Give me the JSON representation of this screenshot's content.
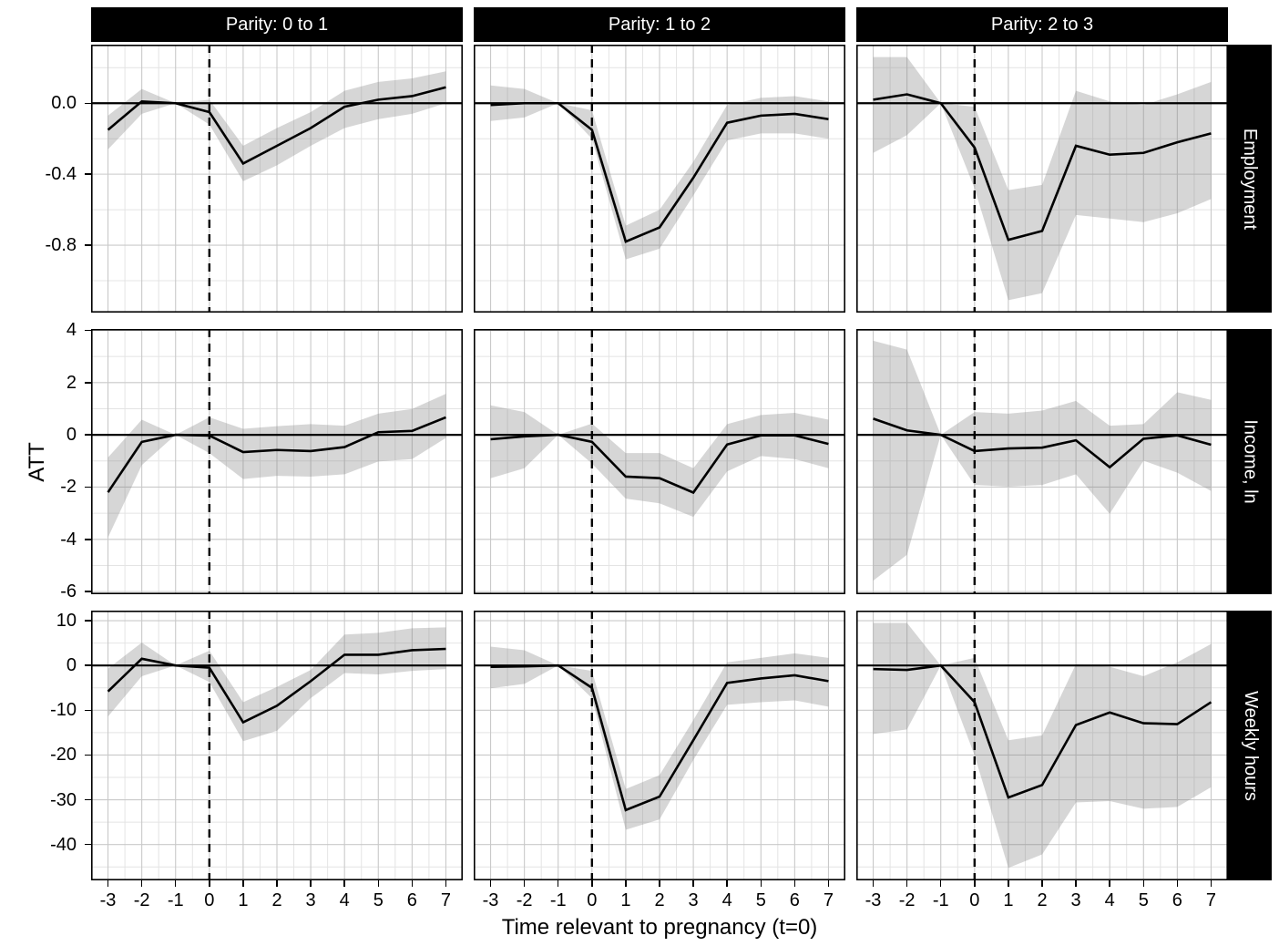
{
  "figure": {
    "x_axis_title": "Time relevant to pregnancy (t=0)",
    "y_axis_title": "ATT",
    "col_labels": [
      "Parity: 0 to 1",
      "Parity: 1 to 2",
      "Parity: 2 to 3"
    ],
    "row_labels": [
      "Employment",
      "Income, ln",
      "Weekly hours"
    ],
    "x_tick_labels": [
      "-3",
      "-2",
      "-1",
      "0",
      "1",
      "2",
      "3",
      "4",
      "5",
      "6",
      "7"
    ],
    "colors": {
      "strip_bg": "#000000",
      "strip_text": "#ffffff",
      "line": "#000000",
      "ribbon": "#7f7f7f",
      "ribbon_opacity": 0.32,
      "grid_major": "#c9c9c9",
      "grid_minor": "#e4e4e4",
      "axis_text": "#000000",
      "zero_line": "#000000",
      "event_line": "#000000",
      "panel_border": "#000000"
    }
  },
  "chart_data": {
    "type": "line",
    "title": "",
    "xlabel": "Time relevant to pregnancy (t=0)",
    "ylabel": "ATT",
    "facets": {
      "columns": [
        "Parity: 0 to 1",
        "Parity: 1 to 2",
        "Parity: 2 to 3"
      ],
      "rows": [
        "Employment",
        "Income, ln",
        "Weekly hours"
      ]
    },
    "x": [
      -3,
      -2,
      -1,
      0,
      1,
      2,
      3,
      4,
      5,
      6,
      7
    ],
    "xlim": [
      -3.5,
      7.5
    ],
    "x_minor": [
      -2.5,
      -1.5,
      -0.5,
      0.5,
      1.5,
      2.5,
      3.5,
      4.5,
      5.5,
      6.5
    ],
    "grid": true,
    "legend": false,
    "reference": {
      "hline_y": 0,
      "vline_x": 0,
      "vline_style": "dashed"
    },
    "rows": [
      {
        "label": "Employment",
        "ylim": [
          -1.18,
          0.33
        ],
        "ticks": [
          0,
          -0.4,
          -0.8
        ],
        "tick_labels": [
          "0.0",
          "-0.4",
          "-0.8"
        ],
        "minor": [
          0.2,
          -0.2,
          -0.6,
          -1.0
        ]
      },
      {
        "label": "Income, ln",
        "ylim": [
          -6.1,
          4.05
        ],
        "ticks": [
          4,
          2,
          0,
          -2,
          -4,
          -6
        ],
        "tick_labels": [
          "4",
          "2",
          "0",
          "-2",
          "-4",
          "-6"
        ],
        "minor": [
          3,
          1,
          -1,
          -3,
          -5
        ]
      },
      {
        "label": "Weekly hours",
        "ylim": [
          -48,
          12.25
        ],
        "ticks": [
          10,
          0,
          -10,
          -20,
          -30,
          -40
        ],
        "tick_labels": [
          "10",
          "0",
          "-10",
          "-20",
          "-30",
          "-40"
        ],
        "minor": [
          5,
          -5,
          -15,
          -25,
          -35,
          -45
        ]
      }
    ],
    "panels": [
      {
        "row": "Employment",
        "col": "Parity: 0 to 1",
        "att": [
          -0.15,
          0.01,
          0.0,
          -0.05,
          -0.34,
          -0.24,
          -0.14,
          -0.02,
          0.02,
          0.04,
          0.09
        ],
        "ci_upper": [
          -0.07,
          0.08,
          0.0,
          0.02,
          -0.24,
          -0.14,
          -0.05,
          0.07,
          0.12,
          0.14,
          0.18
        ],
        "ci_lower": [
          -0.26,
          -0.06,
          0.0,
          -0.12,
          -0.44,
          -0.35,
          -0.24,
          -0.14,
          -0.09,
          -0.06,
          0.0
        ]
      },
      {
        "row": "Employment",
        "col": "Parity: 1 to 2",
        "att": [
          -0.01,
          0.0,
          0.0,
          -0.15,
          -0.78,
          -0.7,
          -0.42,
          -0.11,
          -0.07,
          -0.06,
          -0.09
        ],
        "ci_upper": [
          0.1,
          0.08,
          0.0,
          -0.04,
          -0.69,
          -0.6,
          -0.33,
          -0.01,
          0.03,
          0.04,
          0.01
        ],
        "ci_lower": [
          -0.1,
          -0.08,
          0.0,
          -0.2,
          -0.88,
          -0.82,
          -0.52,
          -0.21,
          -0.17,
          -0.17,
          -0.2
        ]
      },
      {
        "row": "Employment",
        "col": "Parity: 2 to 3",
        "att": [
          0.02,
          0.05,
          0.0,
          -0.25,
          -0.77,
          -0.72,
          -0.24,
          -0.29,
          -0.28,
          -0.22,
          -0.17
        ],
        "ci_upper": [
          0.26,
          0.26,
          0.0,
          -0.02,
          -0.49,
          -0.46,
          0.07,
          0.01,
          -0.01,
          0.05,
          0.12
        ],
        "ci_lower": [
          -0.28,
          -0.18,
          0.0,
          -0.48,
          -1.11,
          -1.07,
          -0.63,
          -0.65,
          -0.67,
          -0.62,
          -0.54
        ]
      },
      {
        "row": "Income, ln",
        "col": "Parity: 0 to 1",
        "att": [
          -2.2,
          -0.27,
          0.0,
          -0.03,
          -0.66,
          -0.58,
          -0.62,
          -0.47,
          0.1,
          0.15,
          0.67
        ],
        "ci_upper": [
          -0.87,
          0.58,
          0.0,
          0.67,
          0.23,
          0.33,
          0.41,
          0.35,
          0.81,
          0.99,
          1.57
        ],
        "ci_lower": [
          -3.93,
          -1.16,
          0.0,
          -0.7,
          -1.69,
          -1.57,
          -1.6,
          -1.51,
          -1.02,
          -0.93,
          -0.12
        ]
      },
      {
        "row": "Income, ln",
        "col": "Parity: 1 to 2",
        "att": [
          -0.17,
          -0.06,
          0.0,
          -0.27,
          -1.6,
          -1.66,
          -2.21,
          -0.37,
          -0.02,
          -0.02,
          -0.35
        ],
        "ci_upper": [
          1.13,
          0.87,
          0.0,
          0.43,
          -0.7,
          -0.7,
          -1.28,
          0.41,
          0.76,
          0.84,
          0.58
        ],
        "ci_lower": [
          -1.66,
          -1.28,
          0.0,
          -1.1,
          -2.44,
          -2.62,
          -3.14,
          -1.4,
          -0.81,
          -0.93,
          -1.28
        ]
      },
      {
        "row": "Income, ln",
        "col": "Parity: 2 to 3",
        "att": [
          0.62,
          0.17,
          0.0,
          -0.62,
          -0.52,
          -0.49,
          -0.21,
          -1.24,
          -0.15,
          -0.02,
          -0.38
        ],
        "ci_upper": [
          3.6,
          3.26,
          0.0,
          0.87,
          0.81,
          0.93,
          1.3,
          0.35,
          0.41,
          1.63,
          1.34
        ],
        "ci_lower": [
          -5.58,
          -4.59,
          0.0,
          -1.92,
          -1.98,
          -1.92,
          -1.51,
          -3.02,
          -0.99,
          -1.45,
          -2.15
        ]
      },
      {
        "row": "Weekly hours",
        "col": "Parity: 0 to 1",
        "att": [
          -5.8,
          1.5,
          0.0,
          -0.5,
          -12.7,
          -9.0,
          -3.5,
          2.4,
          2.4,
          3.4,
          3.7
        ],
        "ci_upper": [
          -0.7,
          5.1,
          0.0,
          3.3,
          -8.2,
          -4.8,
          -1.0,
          6.9,
          7.3,
          8.3,
          8.5
        ],
        "ci_lower": [
          -11.4,
          -2.4,
          0.0,
          -3.7,
          -16.9,
          -14.6,
          -7.3,
          -1.7,
          -2.0,
          -1.2,
          -0.8
        ]
      },
      {
        "row": "Weekly hours",
        "col": "Parity: 1 to 2",
        "att": [
          -0.3,
          -0.2,
          0.0,
          -5.0,
          -32.3,
          -29.3,
          -16.7,
          -3.9,
          -2.9,
          -2.2,
          -3.5
        ],
        "ci_upper": [
          4.2,
          3.4,
          0.0,
          -1.2,
          -27.6,
          -24.5,
          -12.2,
          0.7,
          1.7,
          2.7,
          1.7
        ],
        "ci_lower": [
          -5.1,
          -4.1,
          0.0,
          -7.3,
          -36.7,
          -34.4,
          -21.1,
          -8.8,
          -8.2,
          -7.8,
          -9.2
        ]
      },
      {
        "row": "Weekly hours",
        "col": "Parity: 2 to 3",
        "att": [
          -0.8,
          -1.0,
          0.0,
          -8.2,
          -29.5,
          -26.7,
          -13.3,
          -10.5,
          -12.9,
          -13.1,
          -8.2
        ],
        "ci_upper": [
          9.5,
          9.5,
          0.0,
          1.7,
          -16.7,
          -15.6,
          0.3,
          -0.3,
          -2.4,
          0.7,
          4.8
        ],
        "ci_lower": [
          -15.3,
          -14.3,
          0.0,
          -20.1,
          -45.2,
          -42.2,
          -30.6,
          -30.3,
          -32.0,
          -31.6,
          -27.2
        ]
      }
    ]
  }
}
